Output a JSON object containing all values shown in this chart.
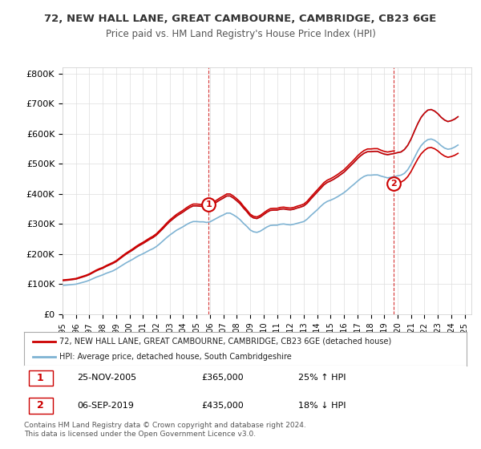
{
  "title": "72, NEW HALL LANE, GREAT CAMBOURNE, CAMBRIDGE, CB23 6GE",
  "subtitle": "Price paid vs. HM Land Registry's House Price Index (HPI)",
  "ylabel_ticks": [
    "£0",
    "£100K",
    "£200K",
    "£300K",
    "£400K",
    "£500K",
    "£600K",
    "£700K",
    "£800K"
  ],
  "ytick_values": [
    0,
    100000,
    200000,
    300000,
    400000,
    500000,
    600000,
    700000,
    800000
  ],
  "ylim": [
    0,
    820000
  ],
  "xlim_start": 1995.0,
  "xlim_end": 2025.5,
  "legend_line1": "72, NEW HALL LANE, GREAT CAMBOURNE, CAMBRIDGE, CB23 6GE (detached house)",
  "legend_line2": "HPI: Average price, detached house, South Cambridgeshire",
  "marker1_label": "1",
  "marker1_date": "25-NOV-2005",
  "marker1_price": "£365,000",
  "marker1_hpi": "25% ↑ HPI",
  "marker1_x": 2005.9,
  "marker1_y": 365000,
  "marker2_label": "2",
  "marker2_date": "06-SEP-2019",
  "marker2_price": "£435,000",
  "marker2_hpi": "18% ↓ HPI",
  "marker2_x": 2019.68,
  "marker2_y": 435000,
  "vline1_x": 2005.9,
  "vline2_x": 2019.68,
  "red_line_color": "#cc0000",
  "blue_line_color": "#7fb3d3",
  "footnote": "Contains HM Land Registry data © Crown copyright and database right 2024.\nThis data is licensed under the Open Government Licence v3.0.",
  "background_color": "#ffffff",
  "grid_color": "#dddddd",
  "hpi_data_x": [
    1995.0,
    1995.25,
    1995.5,
    1995.75,
    1996.0,
    1996.25,
    1996.5,
    1996.75,
    1997.0,
    1997.25,
    1997.5,
    1997.75,
    1998.0,
    1998.25,
    1998.5,
    1998.75,
    1999.0,
    1999.25,
    1999.5,
    1999.75,
    2000.0,
    2000.25,
    2000.5,
    2000.75,
    2001.0,
    2001.25,
    2001.5,
    2001.75,
    2002.0,
    2002.25,
    2002.5,
    2002.75,
    2003.0,
    2003.25,
    2003.5,
    2003.75,
    2004.0,
    2004.25,
    2004.5,
    2004.75,
    2005.0,
    2005.25,
    2005.5,
    2005.75,
    2006.0,
    2006.25,
    2006.5,
    2006.75,
    2007.0,
    2007.25,
    2007.5,
    2007.75,
    2008.0,
    2008.25,
    2008.5,
    2008.75,
    2009.0,
    2009.25,
    2009.5,
    2009.75,
    2010.0,
    2010.25,
    2010.5,
    2010.75,
    2011.0,
    2011.25,
    2011.5,
    2011.75,
    2012.0,
    2012.25,
    2012.5,
    2012.75,
    2013.0,
    2013.25,
    2013.5,
    2013.75,
    2014.0,
    2014.25,
    2014.5,
    2014.75,
    2015.0,
    2015.25,
    2015.5,
    2015.75,
    2016.0,
    2016.25,
    2016.5,
    2016.75,
    2017.0,
    2017.25,
    2017.5,
    2017.75,
    2018.0,
    2018.25,
    2018.5,
    2018.75,
    2019.0,
    2019.25,
    2019.5,
    2019.75,
    2020.0,
    2020.25,
    2020.5,
    2020.75,
    2021.0,
    2021.25,
    2021.5,
    2021.75,
    2022.0,
    2022.25,
    2022.5,
    2022.75,
    2023.0,
    2023.25,
    2023.5,
    2023.75,
    2024.0,
    2024.25,
    2024.5
  ],
  "hpi_data_y": [
    96000,
    97000,
    98000,
    99000,
    100000,
    103000,
    106000,
    109000,
    113000,
    118000,
    123000,
    127000,
    131000,
    136000,
    140000,
    144000,
    150000,
    157000,
    164000,
    171000,
    177000,
    183000,
    190000,
    196000,
    201000,
    207000,
    213000,
    218000,
    225000,
    234000,
    244000,
    254000,
    263000,
    271000,
    279000,
    285000,
    291000,
    298000,
    304000,
    308000,
    308000,
    307000,
    307000,
    305000,
    307000,
    313000,
    319000,
    325000,
    330000,
    336000,
    336000,
    330000,
    323000,
    314000,
    302000,
    292000,
    280000,
    274000,
    272000,
    276000,
    283000,
    290000,
    295000,
    296000,
    296000,
    299000,
    300000,
    298000,
    297000,
    299000,
    302000,
    305000,
    308000,
    316000,
    327000,
    337000,
    347000,
    358000,
    368000,
    375000,
    379000,
    384000,
    390000,
    397000,
    404000,
    413000,
    423000,
    432000,
    442000,
    451000,
    458000,
    462000,
    462000,
    463000,
    463000,
    459000,
    456000,
    453000,
    455000,
    457000,
    460000,
    462000,
    468000,
    480000,
    498000,
    520000,
    542000,
    560000,
    572000,
    580000,
    582000,
    578000,
    570000,
    560000,
    552000,
    548000,
    550000,
    555000,
    562000
  ],
  "hpi_indexed_x": [
    1995.0,
    1995.25,
    1995.5,
    1995.75,
    1996.0,
    1996.25,
    1996.5,
    1996.75,
    1997.0,
    1997.25,
    1997.5,
    1997.75,
    1998.0,
    1998.25,
    1998.5,
    1998.75,
    1999.0,
    1999.25,
    1999.5,
    1999.75,
    2000.0,
    2000.25,
    2000.5,
    2000.75,
    2001.0,
    2001.25,
    2001.5,
    2001.75,
    2002.0,
    2002.25,
    2002.5,
    2002.75,
    2003.0,
    2003.25,
    2003.5,
    2003.75,
    2004.0,
    2004.25,
    2004.5,
    2004.75,
    2005.0,
    2005.25,
    2005.5,
    2005.75,
    2006.0,
    2006.25,
    2006.5,
    2006.75,
    2007.0,
    2007.25,
    2007.5,
    2007.75,
    2008.0,
    2008.25,
    2008.5,
    2008.75,
    2009.0,
    2009.25,
    2009.5,
    2009.75,
    2010.0,
    2010.25,
    2010.5,
    2010.75,
    2011.0,
    2011.25,
    2011.5,
    2011.75,
    2012.0,
    2012.25,
    2012.5,
    2012.75,
    2013.0,
    2013.25,
    2013.5,
    2013.75,
    2014.0,
    2014.25,
    2014.5,
    2014.75,
    2015.0,
    2015.25,
    2015.5,
    2015.75,
    2016.0,
    2016.25,
    2016.5,
    2016.75,
    2017.0,
    2017.25,
    2017.5,
    2017.75,
    2018.0,
    2018.25,
    2018.5,
    2018.75,
    2019.0,
    2019.25,
    2019.5,
    2019.75,
    2020.0,
    2020.25,
    2020.5,
    2020.75,
    2021.0,
    2021.25,
    2021.5,
    2021.75,
    2022.0,
    2022.25,
    2022.5,
    2022.75,
    2023.0,
    2023.25,
    2023.5,
    2023.75,
    2024.0,
    2024.25,
    2024.5
  ],
  "hpi_indexed_y": [
    112000,
    113000,
    114000,
    115500,
    117000,
    120500,
    124000,
    127500,
    132000,
    138000,
    144000,
    149000,
    153000,
    159000,
    164000,
    169000,
    175000,
    183500,
    192000,
    200000,
    207000,
    214000,
    222000,
    229000,
    235000,
    242000,
    249000,
    255000,
    263000,
    274000,
    285000,
    297000,
    308000,
    317000,
    326000,
    333000,
    340000,
    348000,
    355000,
    360000,
    360000,
    359000,
    358000,
    356000,
    359000,
    366000,
    373000,
    380000,
    386000,
    393000,
    393000,
    386000,
    377000,
    367000,
    353000,
    341000,
    327000,
    320000,
    318000,
    323000,
    331000,
    339000,
    345000,
    346000,
    346000,
    349000,
    350000,
    348000,
    347000,
    349000,
    353000,
    356000,
    360000,
    369000,
    382000,
    394000,
    406000,
    418000,
    430000,
    438000,
    443000,
    449000,
    456000,
    464000,
    472000,
    483000,
    494000,
    505000,
    517000,
    527000,
    535000,
    540000,
    540000,
    541000,
    541000,
    536000,
    532000,
    530000,
    532000,
    534000,
    537000,
    539000,
    547000,
    561000,
    582000,
    608000,
    633000,
    654000,
    668000,
    678000,
    680000,
    675000,
    666000,
    654000,
    645000,
    640000,
    643000,
    648000,
    656000
  ]
}
